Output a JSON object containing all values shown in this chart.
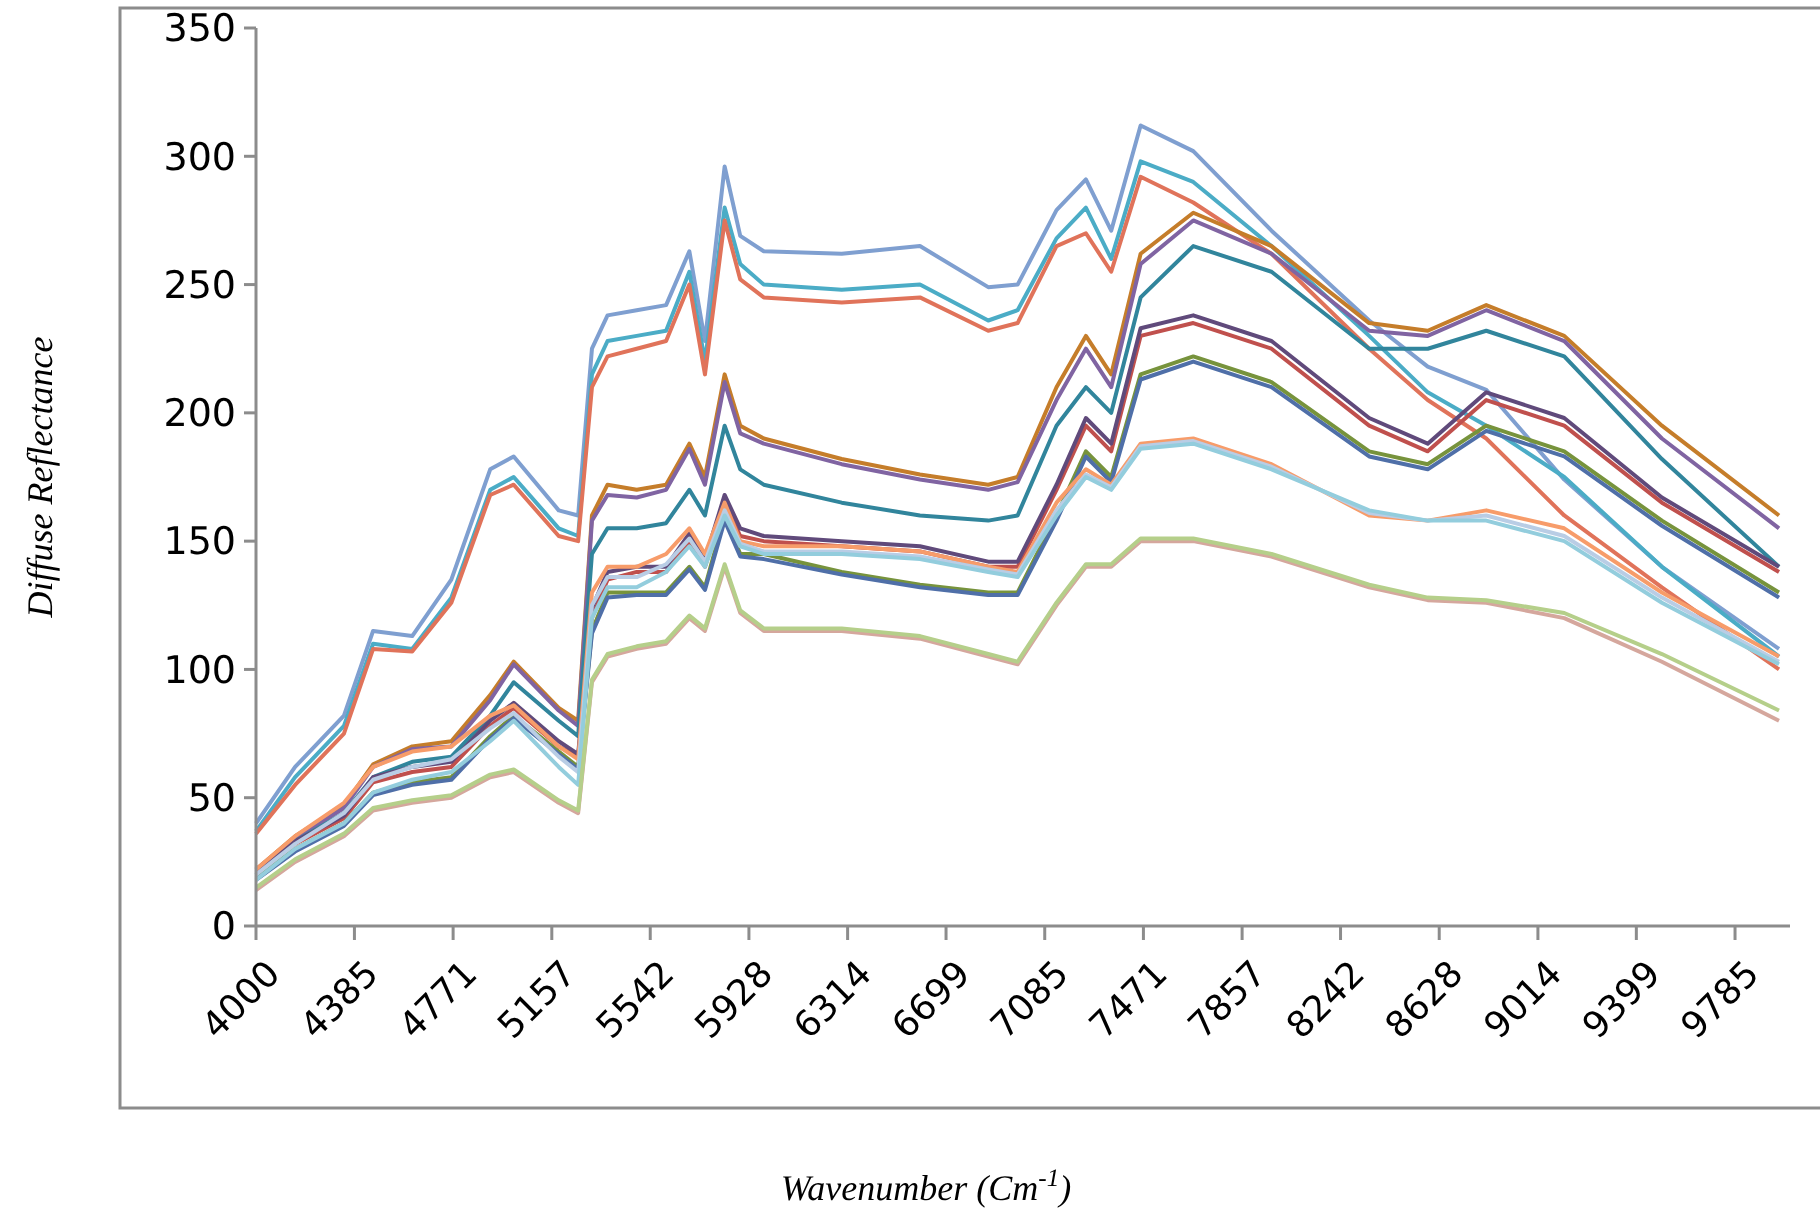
{
  "chart_data": {
    "type": "line",
    "xlabel": "Wavenumber (Cm$^{-1}$)",
    "ylabel": "Diffuse Reflectance",
    "x": [
      4000,
      4153,
      4344,
      4458,
      4611,
      4764,
      4916,
      5008,
      5184,
      5260,
      5314,
      5375,
      5489,
      5604,
      5695,
      5756,
      5833,
      5894,
      5986,
      6291,
      6597,
      6864,
      6979,
      7131,
      7246,
      7345,
      7460,
      7666,
      7972,
      8354,
      8583,
      8812,
      9117,
      9499,
      9957
    ],
    "xlim": [
      4000,
      10000
    ],
    "xticks": [
      4000,
      4385,
      4771,
      5157,
      5542,
      5928,
      6314,
      6699,
      7085,
      7471,
      7857,
      8242,
      8628,
      9014,
      9399,
      9785
    ],
    "ylim": [
      0,
      350
    ],
    "yticks": [
      0,
      50,
      100,
      150,
      200,
      250,
      300,
      350
    ],
    "grid": false,
    "marker": "none",
    "line_style": "solid",
    "series": [
      {
        "color": "#7f9fd0",
        "values": [
          40,
          62,
          82,
          115,
          113,
          135,
          178,
          183,
          162,
          160,
          225,
          238,
          240,
          242,
          263,
          228,
          296,
          269,
          263,
          262,
          265,
          249,
          250,
          279,
          291,
          271,
          312,
          302,
          271,
          236,
          218,
          209,
          174,
          140,
          108
        ]
      },
      {
        "color": "#4bacc6",
        "values": [
          37,
          58,
          78,
          110,
          108,
          128,
          170,
          175,
          155,
          152,
          215,
          228,
          230,
          232,
          255,
          220,
          280,
          258,
          250,
          248,
          250,
          236,
          240,
          268,
          280,
          260,
          298,
          290,
          265,
          230,
          208,
          195,
          175,
          140,
          105
        ]
      },
      {
        "color": "#e0735a",
        "values": [
          36,
          55,
          75,
          108,
          107,
          126,
          168,
          172,
          152,
          150,
          210,
          222,
          225,
          228,
          250,
          215,
          275,
          252,
          245,
          243,
          245,
          232,
          235,
          265,
          270,
          255,
          292,
          282,
          262,
          225,
          205,
          190,
          160,
          132,
          100
        ]
      },
      {
        "color": "#c57d2a",
        "values": [
          22,
          35,
          47,
          63,
          70,
          72,
          90,
          103,
          85,
          80,
          160,
          172,
          170,
          172,
          188,
          175,
          215,
          195,
          190,
          182,
          176,
          172,
          175,
          210,
          230,
          215,
          262,
          278,
          265,
          235,
          232,
          242,
          230,
          195,
          160
        ]
      },
      {
        "color": "#8064a2",
        "values": [
          22,
          34,
          46,
          62,
          69,
          70,
          88,
          102,
          84,
          78,
          158,
          168,
          167,
          170,
          186,
          172,
          212,
          192,
          188,
          180,
          174,
          170,
          173,
          205,
          225,
          210,
          258,
          275,
          262,
          232,
          230,
          240,
          228,
          190,
          155
        ]
      },
      {
        "color": "#31859c",
        "values": [
          20,
          33,
          44,
          58,
          64,
          66,
          82,
          95,
          80,
          74,
          145,
          155,
          155,
          157,
          170,
          160,
          195,
          178,
          172,
          165,
          160,
          158,
          160,
          195,
          210,
          200,
          245,
          265,
          255,
          225,
          225,
          232,
          222,
          182,
          140
        ]
      },
      {
        "color": "#c0504d",
        "values": [
          21,
          32,
          42,
          56,
          60,
          62,
          78,
          85,
          70,
          66,
          120,
          135,
          138,
          138,
          150,
          140,
          165,
          152,
          150,
          148,
          146,
          140,
          140,
          170,
          195,
          185,
          230,
          235,
          225,
          195,
          185,
          205,
          195,
          165,
          138
        ]
      },
      {
        "color": "#604a7b",
        "values": [
          22,
          33,
          43,
          58,
          62,
          64,
          80,
          87,
          72,
          67,
          124,
          138,
          140,
          140,
          153,
          143,
          168,
          155,
          152,
          150,
          148,
          142,
          142,
          172,
          198,
          188,
          233,
          238,
          228,
          198,
          188,
          208,
          198,
          167,
          140
        ]
      },
      {
        "color": "#77933c",
        "values": [
          19,
          30,
          40,
          52,
          56,
          58,
          74,
          82,
          68,
          62,
          115,
          130,
          130,
          130,
          140,
          132,
          160,
          145,
          145,
          138,
          133,
          130,
          130,
          160,
          185,
          175,
          215,
          222,
          212,
          185,
          180,
          195,
          185,
          158,
          130
        ]
      },
      {
        "color": "#4f6fa8",
        "values": [
          18,
          29,
          39,
          51,
          55,
          57,
          73,
          81,
          67,
          61,
          114,
          128,
          129,
          129,
          139,
          131,
          158,
          144,
          143,
          137,
          132,
          129,
          129,
          158,
          183,
          173,
          213,
          220,
          210,
          183,
          178,
          193,
          183,
          156,
          128
        ]
      },
      {
        "color": "#f79c6a",
        "values": [
          22,
          35,
          48,
          62,
          68,
          70,
          82,
          86,
          70,
          65,
          130,
          140,
          140,
          145,
          155,
          145,
          165,
          150,
          148,
          148,
          146,
          140,
          138,
          165,
          178,
          172,
          188,
          190,
          180,
          160,
          158,
          162,
          155,
          130,
          105
        ]
      },
      {
        "color": "#b9cde5",
        "values": [
          20,
          32,
          44,
          57,
          62,
          65,
          77,
          83,
          66,
          60,
          125,
          136,
          136,
          141,
          151,
          142,
          162,
          149,
          146,
          146,
          144,
          139,
          137,
          162,
          176,
          171,
          187,
          189,
          179,
          161,
          158,
          160,
          152,
          128,
          103
        ]
      },
      {
        "color": "#93cddd",
        "values": [
          18,
          30,
          40,
          52,
          57,
          60,
          72,
          80,
          62,
          55,
          120,
          132,
          132,
          138,
          148,
          140,
          160,
          148,
          145,
          145,
          143,
          138,
          136,
          160,
          175,
          170,
          186,
          188,
          178,
          162,
          158,
          158,
          150,
          126,
          102
        ]
      },
      {
        "color": "#d5a79d",
        "values": [
          14,
          25,
          35,
          45,
          48,
          50,
          58,
          60,
          48,
          44,
          95,
          105,
          108,
          110,
          120,
          115,
          140,
          122,
          115,
          115,
          112,
          105,
          102,
          125,
          140,
          140,
          150,
          150,
          144,
          132,
          127,
          126,
          120,
          103,
          80
        ]
      },
      {
        "color": "#b5cf8a",
        "values": [
          15,
          26,
          36,
          46,
          49,
          51,
          59,
          61,
          49,
          45,
          96,
          106,
          109,
          111,
          121,
          116,
          141,
          123,
          116,
          116,
          113,
          106,
          103,
          126,
          141,
          141,
          151,
          151,
          145,
          133,
          128,
          127,
          122,
          106,
          84
        ]
      }
    ]
  }
}
